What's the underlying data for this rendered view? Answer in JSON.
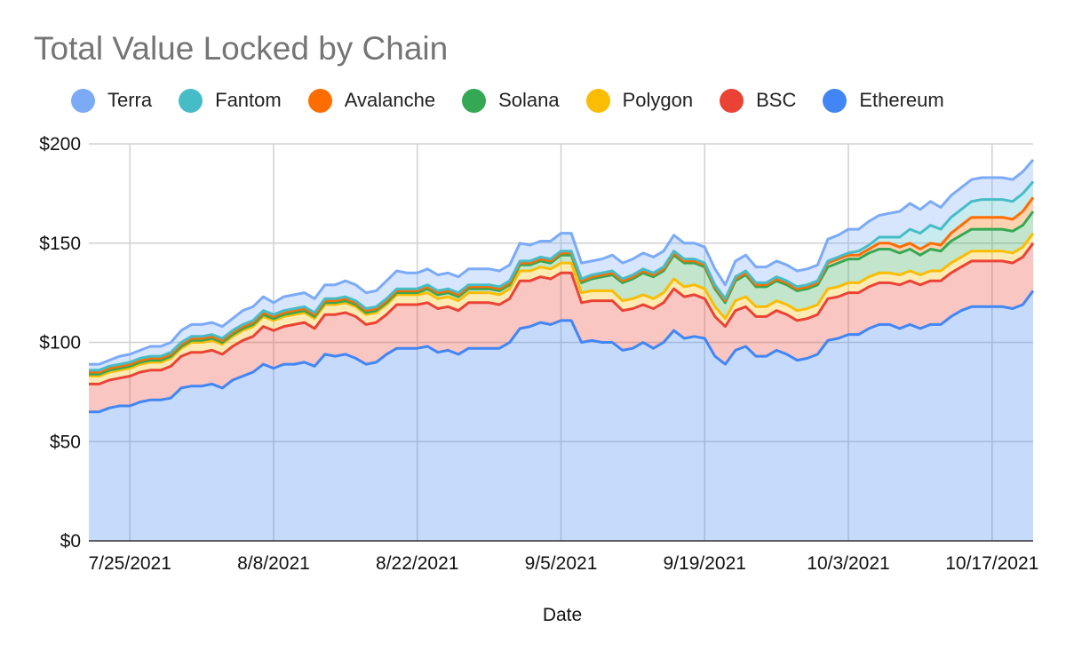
{
  "chart_data": {
    "type": "area",
    "stacked": true,
    "title": "Total Value Locked by Chain",
    "xlabel": "Date",
    "ylabel": "",
    "ylim": [
      0,
      200
    ],
    "grid": true,
    "legend_position": "top",
    "xticks": [
      "7/25/2021",
      "8/8/2021",
      "8/22/2021",
      "9/5/2021",
      "9/19/2021",
      "10/3/2021",
      "10/17/2021"
    ],
    "yticks": [
      "$0",
      "$50",
      "$100",
      "$150",
      "$200"
    ],
    "ytick_values": [
      0,
      50,
      100,
      150,
      200
    ],
    "x": [
      "2021-07-21",
      "2021-07-22",
      "2021-07-23",
      "2021-07-24",
      "2021-07-25",
      "2021-07-26",
      "2021-07-27",
      "2021-07-28",
      "2021-07-29",
      "2021-07-30",
      "2021-07-31",
      "2021-08-01",
      "2021-08-02",
      "2021-08-03",
      "2021-08-04",
      "2021-08-05",
      "2021-08-06",
      "2021-08-07",
      "2021-08-08",
      "2021-08-09",
      "2021-08-10",
      "2021-08-11",
      "2021-08-12",
      "2021-08-13",
      "2021-08-14",
      "2021-08-15",
      "2021-08-16",
      "2021-08-17",
      "2021-08-18",
      "2021-08-19",
      "2021-08-20",
      "2021-08-21",
      "2021-08-22",
      "2021-08-23",
      "2021-08-24",
      "2021-08-25",
      "2021-08-26",
      "2021-08-27",
      "2021-08-28",
      "2021-08-29",
      "2021-08-30",
      "2021-08-31",
      "2021-09-01",
      "2021-09-02",
      "2021-09-03",
      "2021-09-04",
      "2021-09-05",
      "2021-09-06",
      "2021-09-07",
      "2021-09-08",
      "2021-09-09",
      "2021-09-10",
      "2021-09-11",
      "2021-09-12",
      "2021-09-13",
      "2021-09-14",
      "2021-09-15",
      "2021-09-16",
      "2021-09-17",
      "2021-09-18",
      "2021-09-19",
      "2021-09-20",
      "2021-09-21",
      "2021-09-22",
      "2021-09-23",
      "2021-09-24",
      "2021-09-25",
      "2021-09-26",
      "2021-09-27",
      "2021-09-28",
      "2021-09-29",
      "2021-09-30",
      "2021-10-01",
      "2021-10-02",
      "2021-10-03",
      "2021-10-04",
      "2021-10-05",
      "2021-10-06",
      "2021-10-07",
      "2021-10-08",
      "2021-10-09",
      "2021-10-10",
      "2021-10-11",
      "2021-10-12",
      "2021-10-13",
      "2021-10-14",
      "2021-10-15",
      "2021-10-16",
      "2021-10-17",
      "2021-10-18",
      "2021-10-19",
      "2021-10-20",
      "2021-10-21"
    ],
    "series": [
      {
        "name": "Ethereum",
        "color": "#4285f4",
        "values": [
          65,
          65,
          67,
          68,
          68,
          70,
          71,
          71,
          72,
          77,
          78,
          78,
          79,
          77,
          81,
          83,
          85,
          89,
          87,
          89,
          89,
          90,
          88,
          94,
          93,
          94,
          92,
          89,
          90,
          94,
          97,
          97,
          97,
          98,
          95,
          96,
          94,
          97,
          97,
          97,
          97,
          100,
          107,
          108,
          110,
          109,
          111,
          111,
          100,
          101,
          100,
          100,
          96,
          97,
          100,
          97,
          100,
          106,
          102,
          103,
          102,
          93,
          89,
          96,
          98,
          93,
          93,
          96,
          94,
          91,
          92,
          94,
          101,
          102,
          104,
          104,
          107,
          109,
          109,
          107,
          109,
          107,
          109,
          109,
          113,
          116,
          118,
          118,
          118,
          118,
          117,
          119,
          126
        ]
      },
      {
        "name": "BSC",
        "color": "#ea4335",
        "values": [
          14,
          14,
          14,
          14,
          15,
          15,
          15,
          15,
          16,
          16,
          17,
          17,
          17,
          17,
          17,
          18,
          18,
          19,
          19,
          19,
          20,
          20,
          19,
          20,
          21,
          21,
          21,
          20,
          20,
          20,
          22,
          22,
          22,
          22,
          22,
          22,
          22,
          23,
          23,
          23,
          22,
          22,
          24,
          23,
          23,
          23,
          24,
          24,
          20,
          20,
          21,
          21,
          20,
          20,
          19,
          20,
          20,
          21,
          21,
          21,
          20,
          20,
          19,
          20,
          20,
          20,
          20,
          20,
          20,
          20,
          20,
          20,
          21,
          21,
          21,
          21,
          21,
          21,
          21,
          22,
          22,
          22,
          22,
          22,
          22,
          22,
          23,
          23,
          23,
          23,
          23,
          24,
          24
        ]
      },
      {
        "name": "Polygon",
        "color": "#fbbc04",
        "values": [
          4,
          4,
          4,
          4,
          4,
          4,
          4,
          4,
          4,
          4,
          5,
          5,
          5,
          5,
          5,
          5,
          5,
          5,
          5,
          5,
          5,
          5,
          5,
          5,
          5,
          5,
          5,
          5,
          5,
          5,
          5,
          5,
          5,
          5,
          5,
          5,
          5,
          5,
          5,
          5,
          5,
          5,
          5,
          5,
          5,
          5,
          5,
          5,
          5,
          5,
          5,
          5,
          5,
          5,
          5,
          5,
          5,
          5,
          5,
          5,
          5,
          5,
          4,
          5,
          5,
          5,
          5,
          5,
          5,
          5,
          5,
          5,
          5,
          5,
          5,
          5,
          5,
          5,
          5,
          5,
          5,
          5,
          5,
          5,
          5,
          5,
          5,
          5,
          5,
          5,
          5,
          5,
          5
        ]
      },
      {
        "name": "Solana",
        "color": "#34a853",
        "values": [
          1,
          1,
          1,
          1,
          1,
          1,
          1,
          1,
          1,
          1,
          1,
          1,
          1,
          1,
          1,
          1,
          1,
          1,
          1,
          1,
          1,
          1,
          1,
          1,
          1,
          1,
          1,
          1,
          1,
          1,
          1,
          1,
          1,
          2,
          2,
          2,
          2,
          2,
          2,
          2,
          2,
          2,
          3,
          3,
          3,
          3,
          4,
          4,
          5,
          6,
          7,
          8,
          9,
          10,
          11,
          11,
          11,
          12,
          12,
          11,
          11,
          9,
          8,
          10,
          11,
          10,
          10,
          10,
          10,
          10,
          10,
          10,
          11,
          12,
          12,
          12,
          12,
          12,
          12,
          11,
          11,
          10,
          11,
          10,
          11,
          11,
          11,
          11,
          11,
          11,
          11,
          11,
          11
        ]
      },
      {
        "name": "Avalanche",
        "color": "#ff6d01",
        "values": [
          1,
          1,
          1,
          1,
          1,
          1,
          1,
          1,
          1,
          1,
          1,
          1,
          1,
          1,
          1,
          1,
          1,
          1,
          1,
          1,
          1,
          1,
          1,
          1,
          1,
          1,
          1,
          1,
          1,
          1,
          1,
          1,
          1,
          1,
          1,
          1,
          1,
          1,
          1,
          1,
          1,
          1,
          1,
          1,
          1,
          1,
          1,
          1,
          1,
          1,
          1,
          1,
          1,
          1,
          1,
          1,
          1,
          1,
          1,
          1,
          1,
          1,
          1,
          1,
          1,
          1,
          1,
          1,
          1,
          1,
          1,
          1,
          2,
          2,
          2,
          2,
          2,
          3,
          3,
          3,
          3,
          3,
          3,
          3,
          4,
          5,
          6,
          6,
          6,
          6,
          6,
          7,
          7
        ]
      },
      {
        "name": "Fantom",
        "color": "#46bdc6",
        "values": [
          1,
          1,
          1,
          1,
          1,
          1,
          1,
          1,
          1,
          1,
          1,
          1,
          1,
          1,
          1,
          1,
          1,
          1,
          1,
          1,
          1,
          1,
          1,
          1,
          1,
          1,
          1,
          1,
          1,
          1,
          1,
          1,
          1,
          1,
          1,
          1,
          1,
          1,
          1,
          1,
          1,
          1,
          1,
          1,
          1,
          1,
          1,
          1,
          1,
          1,
          1,
          1,
          1,
          1,
          1,
          1,
          1,
          1,
          1,
          1,
          1,
          1,
          1,
          1,
          1,
          1,
          1,
          1,
          1,
          1,
          1,
          1,
          1,
          1,
          1,
          2,
          2,
          3,
          3,
          5,
          7,
          8,
          9,
          8,
          8,
          8,
          8,
          9,
          9,
          9,
          9,
          9,
          8
        ]
      },
      {
        "name": "Terra",
        "color": "#7baaf7",
        "values": [
          3,
          3,
          3,
          4,
          4,
          4,
          5,
          5,
          5,
          6,
          6,
          6,
          6,
          6,
          6,
          7,
          7,
          7,
          6,
          7,
          7,
          7,
          7,
          7,
          7,
          8,
          8,
          8,
          8,
          9,
          9,
          8,
          8,
          8,
          8,
          8,
          8,
          8,
          8,
          8,
          8,
          8,
          9,
          8,
          8,
          9,
          9,
          9,
          8,
          7,
          7,
          8,
          8,
          8,
          8,
          8,
          8,
          8,
          8,
          8,
          8,
          8,
          7,
          8,
          8,
          8,
          8,
          8,
          8,
          8,
          8,
          8,
          11,
          11,
          12,
          11,
          12,
          11,
          12,
          13,
          13,
          12,
          12,
          11,
          11,
          11,
          11,
          11,
          11,
          11,
          11,
          11,
          11
        ]
      }
    ]
  }
}
